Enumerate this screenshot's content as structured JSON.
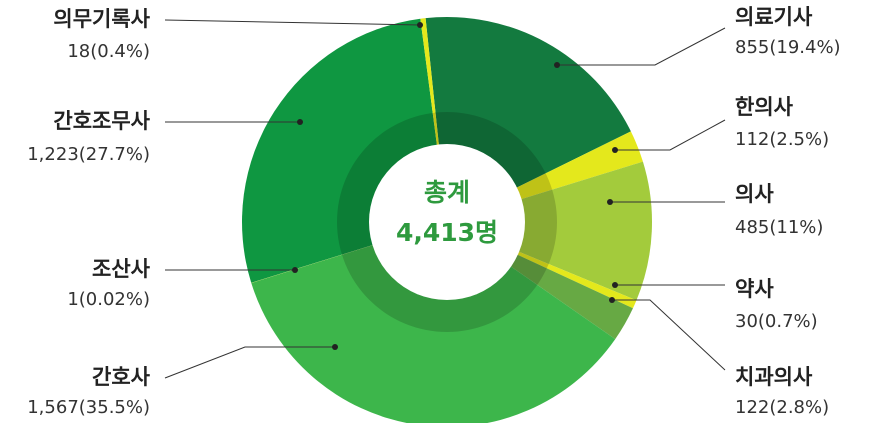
{
  "chart_data": {
    "type": "pie",
    "donut": true,
    "center_title": "총계",
    "center_value": "4,413명",
    "categories": [
      "의료기사",
      "한의사",
      "의사",
      "약사",
      "치과의사",
      "간호사",
      "조산사",
      "간호조무사",
      "의무기록사"
    ],
    "values": [
      855,
      112,
      485,
      30,
      122,
      1567,
      1,
      1223,
      18
    ],
    "value_labels": [
      "855(19.4%)",
      "112(2.5%)",
      "485(11%)",
      "30(0.7%)",
      "122(2.8%)",
      "1,567(35.5%)",
      "1(0.02%)",
      "1,223(27.7%)",
      "18(0.4%)"
    ],
    "colors": [
      "#137a3f",
      "#e4e81c",
      "#a3cb3c",
      "#e4e81c",
      "#67a944",
      "#3db64b",
      "#d8e42a",
      "#0f9741",
      "#e4e81c"
    ]
  }
}
